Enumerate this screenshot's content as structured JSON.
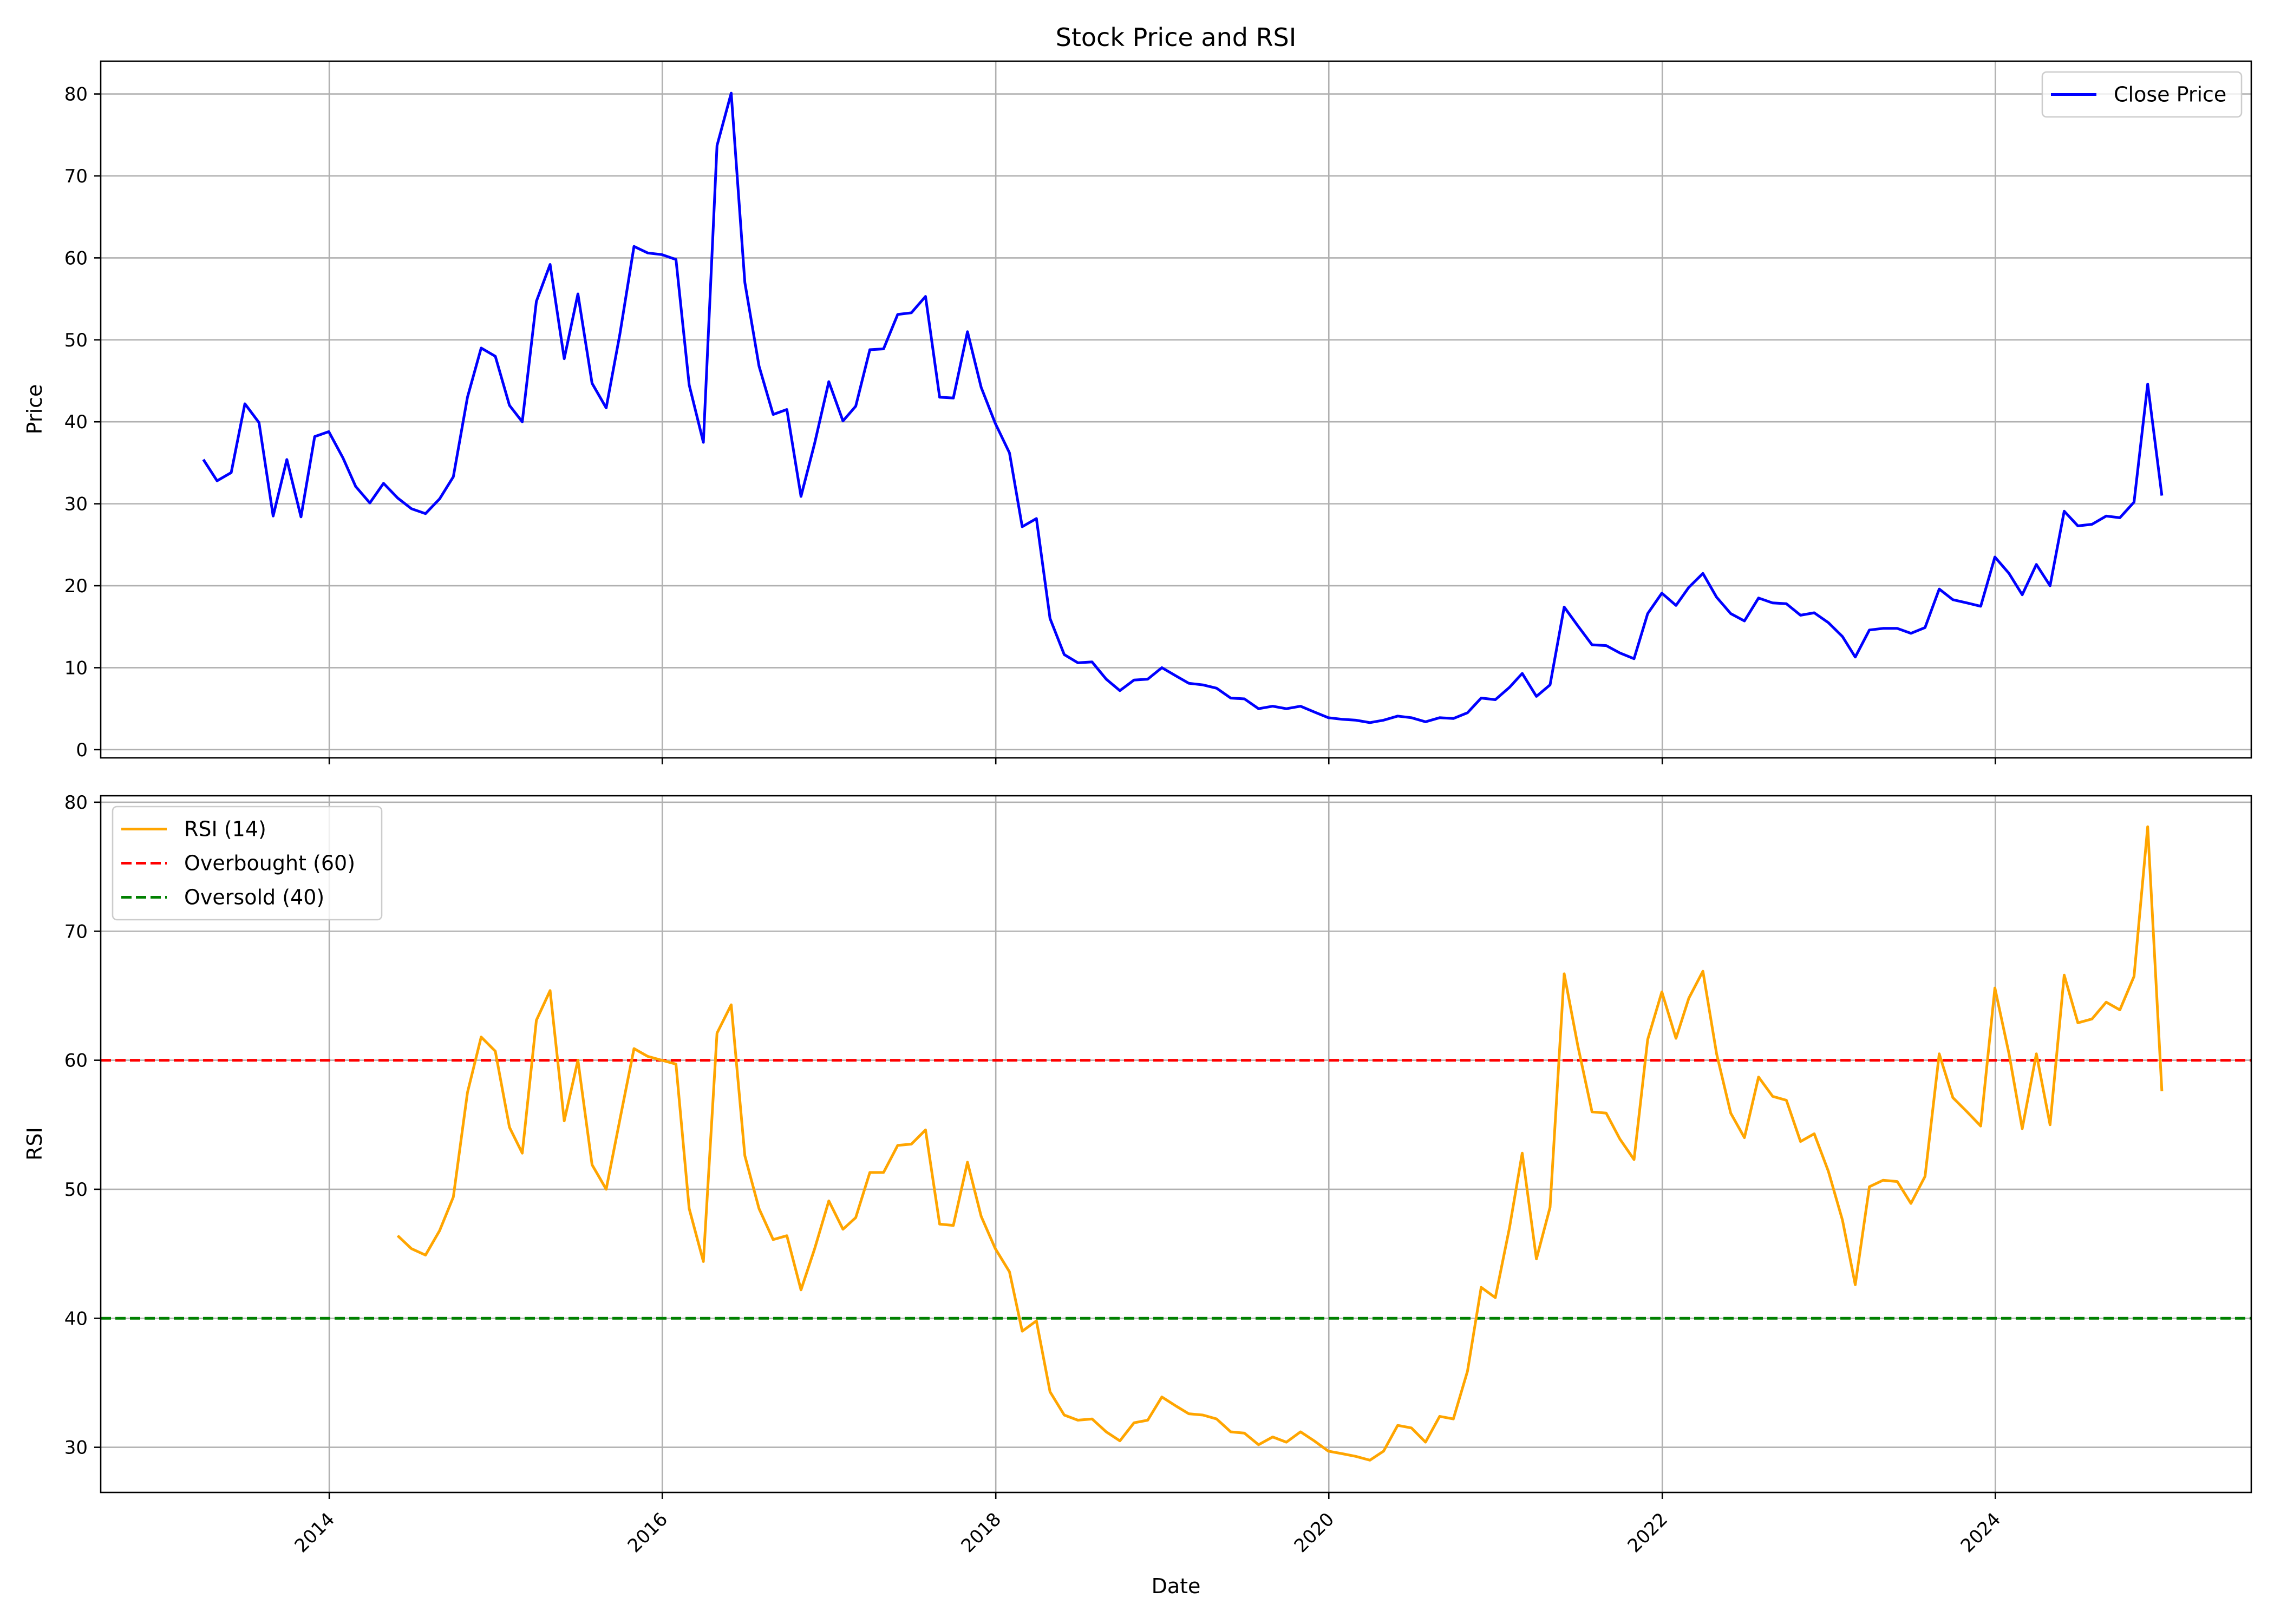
{
  "title": "Stock Price and RSI",
  "chart_data": [
    {
      "type": "line",
      "title": "Stock Price and RSI",
      "xlabel": "",
      "ylabel": "Price",
      "ylim": [
        -1,
        84
      ],
      "xlim": [
        "2012-08-18",
        "2025-07-15"
      ],
      "grid": true,
      "legend": "top-right",
      "yticks": [
        0,
        10,
        20,
        30,
        40,
        50,
        60,
        70,
        80
      ],
      "xticks": [
        "2014-01-01",
        "2016-01-01",
        "2018-01-01",
        "2020-01-01",
        "2022-01-01",
        "2024-01-01"
      ],
      "series": [
        {
          "name": "Close Price",
          "color": "#0000ff",
          "style": "solid",
          "x": [
            "2013-03-31",
            "2013-04-30",
            "2013-05-31",
            "2013-06-30",
            "2013-07-31",
            "2013-08-31",
            "2013-09-30",
            "2013-10-31",
            "2013-11-30",
            "2013-12-31",
            "2014-01-31",
            "2014-02-28",
            "2014-03-31",
            "2014-04-30",
            "2014-05-31",
            "2014-06-30",
            "2014-07-31",
            "2014-08-31",
            "2014-09-30",
            "2014-10-31",
            "2014-11-30",
            "2014-12-31",
            "2015-01-31",
            "2015-02-28",
            "2015-03-31",
            "2015-04-30",
            "2015-05-31",
            "2015-06-30",
            "2015-07-31",
            "2015-08-31",
            "2015-09-30",
            "2015-10-31",
            "2015-11-30",
            "2015-12-31",
            "2016-01-31",
            "2016-02-29",
            "2016-03-31",
            "2016-04-30",
            "2016-05-31",
            "2016-06-30",
            "2016-07-31",
            "2016-08-31",
            "2016-09-30",
            "2016-10-31",
            "2016-11-30",
            "2016-12-31",
            "2017-01-31",
            "2017-02-28",
            "2017-03-31",
            "2017-04-30",
            "2017-05-31",
            "2017-06-30",
            "2017-07-31",
            "2017-08-31",
            "2017-09-30",
            "2017-10-31",
            "2017-11-30",
            "2017-12-31",
            "2018-01-31",
            "2018-02-28",
            "2018-03-31",
            "2018-04-30",
            "2018-05-31",
            "2018-06-30",
            "2018-07-31",
            "2018-08-31",
            "2018-09-30",
            "2018-10-31",
            "2018-11-30",
            "2018-12-31",
            "2019-01-31",
            "2019-02-28",
            "2019-03-31",
            "2019-04-30",
            "2019-05-31",
            "2019-06-30",
            "2019-07-31",
            "2019-08-31",
            "2019-09-30",
            "2019-10-31",
            "2019-11-30",
            "2019-12-31",
            "2020-01-31",
            "2020-02-29",
            "2020-03-31",
            "2020-04-30",
            "2020-05-31",
            "2020-06-30",
            "2020-07-31",
            "2020-08-31",
            "2020-09-30",
            "2020-10-31",
            "2020-11-30",
            "2020-12-31",
            "2021-01-31",
            "2021-02-28",
            "2021-03-31",
            "2021-04-30",
            "2021-05-31",
            "2021-06-30",
            "2021-07-31",
            "2021-08-31",
            "2021-09-30",
            "2021-10-31",
            "2021-11-30",
            "2021-12-31",
            "2022-01-31",
            "2022-02-28",
            "2022-03-31",
            "2022-04-30",
            "2022-05-31",
            "2022-06-30",
            "2022-07-31",
            "2022-08-31",
            "2022-09-30",
            "2022-10-31",
            "2022-11-30",
            "2022-12-31",
            "2023-01-31",
            "2023-02-28",
            "2023-03-31",
            "2023-04-30",
            "2023-05-31",
            "2023-06-30",
            "2023-07-31",
            "2023-08-31",
            "2023-09-30",
            "2023-10-31",
            "2023-11-30",
            "2023-12-31",
            "2024-01-31",
            "2024-02-29",
            "2024-03-31",
            "2024-04-30",
            "2024-05-31",
            "2024-06-30",
            "2024-07-31",
            "2024-08-31",
            "2024-09-30",
            "2024-10-31",
            "2024-11-30",
            "2024-12-31"
          ],
          "values": [
            35.4,
            32.8,
            33.8,
            42.2,
            39.9,
            28.5,
            35.4,
            28.4,
            38.2,
            38.8,
            35.6,
            32.1,
            30.1,
            32.5,
            30.7,
            29.4,
            28.8,
            30.6,
            33.3,
            43.0,
            49.0,
            48.0,
            42.0,
            40.0,
            54.7,
            59.2,
            47.7,
            55.6,
            44.7,
            41.7,
            50.7,
            61.4,
            60.6,
            60.4,
            59.8,
            44.5,
            37.5,
            73.7,
            80.1,
            57.0,
            46.8,
            40.9,
            41.5,
            30.9,
            37.4,
            44.9,
            40.1,
            41.9,
            48.8,
            48.9,
            53.1,
            53.3,
            55.3,
            43.0,
            42.9,
            51.0,
            44.2,
            39.8,
            36.2,
            27.2,
            28.2,
            16.0,
            11.6,
            10.6,
            10.7,
            8.6,
            7.2,
            8.5,
            8.6,
            10.0,
            9.0,
            8.1,
            7.9,
            7.5,
            6.3,
            6.2,
            5.0,
            5.3,
            5.0,
            5.3,
            4.6,
            3.9,
            3.7,
            3.6,
            3.3,
            3.6,
            4.1,
            3.9,
            3.4,
            3.9,
            3.8,
            4.5,
            6.3,
            6.1,
            7.6,
            9.3,
            6.5,
            7.9,
            17.4,
            15.1,
            12.8,
            12.7,
            11.8,
            11.1,
            16.6,
            19.1,
            17.6,
            19.8,
            21.5,
            18.6,
            16.6,
            15.7,
            18.5,
            17.9,
            17.8,
            16.4,
            16.7,
            15.5,
            13.8,
            11.3,
            14.6,
            14.8,
            14.8,
            14.2,
            14.9,
            19.6,
            18.3,
            17.9,
            17.5,
            23.5,
            21.5,
            18.9,
            22.6,
            20.0,
            29.1,
            27.3,
            27.5,
            28.5,
            28.3,
            30.2,
            44.6,
            31.0
          ]
        }
      ]
    },
    {
      "type": "line",
      "xlabel": "Date",
      "ylabel": "RSI",
      "ylim": [
        26.5,
        80.5
      ],
      "xlim": [
        "2012-08-18",
        "2025-07-15"
      ],
      "grid": true,
      "legend": "top-left",
      "yticks": [
        30,
        40,
        50,
        60,
        70,
        80
      ],
      "xticks": [
        "2014-01-01",
        "2016-01-01",
        "2018-01-01",
        "2020-01-01",
        "2022-01-01",
        "2024-01-01"
      ],
      "x_tick_labels": [
        "2014",
        "2016",
        "2018",
        "2020",
        "2022",
        "2024"
      ],
      "hlines": [
        {
          "name": "Overbought (60)",
          "y": 60,
          "color": "#ff0000",
          "style": "dashed"
        },
        {
          "name": "Oversold (40)",
          "y": 40,
          "color": "#008000",
          "style": "dashed"
        }
      ],
      "series": [
        {
          "name": "RSI (14)",
          "color": "#ffa500",
          "style": "solid",
          "x": [
            "2014-05-31",
            "2014-06-30",
            "2014-07-31",
            "2014-08-31",
            "2014-09-30",
            "2014-10-31",
            "2014-11-30",
            "2014-12-31",
            "2015-01-31",
            "2015-02-28",
            "2015-03-31",
            "2015-04-30",
            "2015-05-31",
            "2015-06-30",
            "2015-07-31",
            "2015-08-31",
            "2015-09-30",
            "2015-10-31",
            "2015-11-30",
            "2015-12-31",
            "2016-01-31",
            "2016-02-29",
            "2016-03-31",
            "2016-04-30",
            "2016-05-31",
            "2016-06-30",
            "2016-07-31",
            "2016-08-31",
            "2016-09-30",
            "2016-10-31",
            "2016-11-30",
            "2016-12-31",
            "2017-01-31",
            "2017-02-28",
            "2017-03-31",
            "2017-04-30",
            "2017-05-31",
            "2017-06-30",
            "2017-07-31",
            "2017-08-31",
            "2017-09-30",
            "2017-10-31",
            "2017-11-30",
            "2017-12-31",
            "2018-01-31",
            "2018-02-28",
            "2018-03-31",
            "2018-04-30",
            "2018-05-31",
            "2018-06-30",
            "2018-07-31",
            "2018-08-31",
            "2018-09-30",
            "2018-10-31",
            "2018-11-30",
            "2018-12-31",
            "2019-01-31",
            "2019-02-28",
            "2019-03-31",
            "2019-04-30",
            "2019-05-31",
            "2019-06-30",
            "2019-07-31",
            "2019-08-31",
            "2019-09-30",
            "2019-10-31",
            "2019-11-30",
            "2019-12-31",
            "2020-01-31",
            "2020-02-29",
            "2020-03-31",
            "2020-04-30",
            "2020-05-31",
            "2020-06-30",
            "2020-07-31",
            "2020-08-31",
            "2020-09-30",
            "2020-10-31",
            "2020-11-30",
            "2020-12-31",
            "2021-01-31",
            "2021-02-28",
            "2021-03-31",
            "2021-04-30",
            "2021-05-31",
            "2021-06-30",
            "2021-07-31",
            "2021-08-31",
            "2021-09-30",
            "2021-10-31",
            "2021-11-30",
            "2021-12-31",
            "2022-01-31",
            "2022-02-28",
            "2022-03-31",
            "2022-04-30",
            "2022-05-31",
            "2022-06-30",
            "2022-07-31",
            "2022-08-31",
            "2022-09-30",
            "2022-10-31",
            "2022-11-30",
            "2022-12-31",
            "2023-01-31",
            "2023-02-28",
            "2023-03-31",
            "2023-04-30",
            "2023-05-31",
            "2023-06-30",
            "2023-07-31",
            "2023-08-31",
            "2023-09-30",
            "2023-10-31",
            "2023-11-30",
            "2023-12-31",
            "2024-01-31",
            "2024-02-29",
            "2024-03-31",
            "2024-04-30",
            "2024-05-31",
            "2024-06-30",
            "2024-07-31",
            "2024-08-31",
            "2024-09-30",
            "2024-10-31",
            "2024-11-30",
            "2024-12-31"
          ],
          "values": [
            46.4,
            45.4,
            44.9,
            46.8,
            49.4,
            57.5,
            61.8,
            60.7,
            54.8,
            52.8,
            63.1,
            65.4,
            55.3,
            60.0,
            51.9,
            50.0,
            55.4,
            60.9,
            60.3,
            60.0,
            59.7,
            48.5,
            44.4,
            62.1,
            64.3,
            52.6,
            48.5,
            46.1,
            46.4,
            42.2,
            45.4,
            49.1,
            46.9,
            47.8,
            51.3,
            51.3,
            53.4,
            53.5,
            54.6,
            47.3,
            47.2,
            52.1,
            47.9,
            45.4,
            43.6,
            39.0,
            39.8,
            34.3,
            32.5,
            32.1,
            32.2,
            31.2,
            30.5,
            31.9,
            32.1,
            33.9,
            33.2,
            32.6,
            32.5,
            32.2,
            31.2,
            31.1,
            30.2,
            30.8,
            30.4,
            31.2,
            30.5,
            29.7,
            29.5,
            29.3,
            29.0,
            29.7,
            31.7,
            31.5,
            30.4,
            32.4,
            32.2,
            35.9,
            42.4,
            41.6,
            47.0,
            52.8,
            44.6,
            48.6,
            66.7,
            61.1,
            56.0,
            55.9,
            53.9,
            52.3,
            61.6,
            65.3,
            61.7,
            64.8,
            66.9,
            60.5,
            55.9,
            54.0,
            58.7,
            57.2,
            56.9,
            53.7,
            54.3,
            51.4,
            47.6,
            42.6,
            50.2,
            50.7,
            50.6,
            48.9,
            51.0,
            60.5,
            57.1,
            56.0,
            54.9,
            65.6,
            60.5,
            54.7,
            60.5,
            55.0,
            66.6,
            62.9,
            63.2,
            64.5,
            63.9,
            66.5,
            78.1,
            57.6
          ]
        }
      ]
    }
  ]
}
